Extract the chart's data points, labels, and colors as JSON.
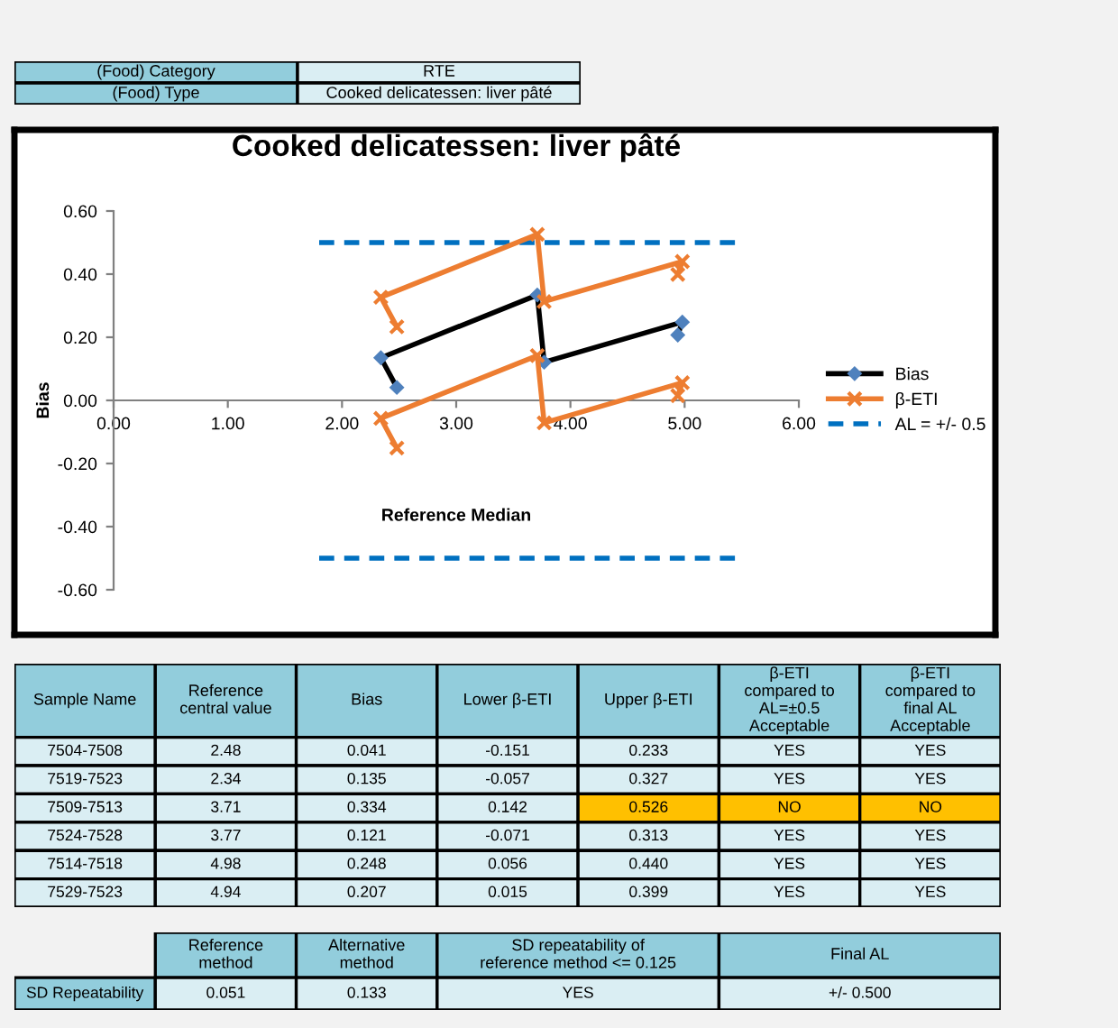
{
  "chart_data": [
    {
      "type": "other",
      "annotations": [
        "(Food) Category",
        "RTE",
        "(Food) Type",
        "Cooked delicatessen: liver pâté"
      ]
    },
    {
      "type": "line",
      "title": "Cooked delicatessen: liver pâté",
      "xlabel": "Reference Median",
      "ylabel": "Bias",
      "x": [
        2.48,
        2.34,
        3.71,
        3.77,
        4.98,
        4.94
      ],
      "series": [
        {
          "name": "Bias",
          "color": "#000000",
          "marker": "diamond",
          "values": [
            0.041,
            0.135,
            0.334,
            0.121,
            0.248,
            0.207
          ]
        },
        {
          "name": "β-ETI",
          "color": "#ed7d31",
          "marker": "cross",
          "values": [
            0.233,
            0.327,
            0.526,
            0.313,
            0.44,
            0.399
          ]
        },
        {
          "color": "#ed7d31",
          "marker": "cross",
          "values": [
            -0.151,
            -0.057,
            0.142,
            -0.071,
            0.056,
            0.015
          ]
        }
      ],
      "ref_lines": [
        {
          "axis": "y",
          "value": 0.5,
          "label": "AL = +/- 0.5",
          "color": "#0070c0",
          "line_style": "dashed"
        },
        {
          "axis": "y",
          "value": -0.5,
          "color": "#0070c0",
          "line_style": "dashed"
        }
      ],
      "xlim": [
        0,
        6
      ],
      "xticks": [
        {
          "value": 0,
          "label": "0.00"
        },
        {
          "value": 1,
          "label": "1.00"
        },
        {
          "value": 2,
          "label": "2.00"
        },
        {
          "value": 3,
          "label": "3.00"
        },
        {
          "value": 4,
          "label": "4.00"
        },
        {
          "value": 5,
          "label": "5.00"
        },
        {
          "value": 6,
          "label": "6.00"
        }
      ],
      "ylim": [
        -0.6,
        0.6
      ],
      "yticks": [
        {
          "value": -0.6,
          "label": "-0.60"
        },
        {
          "value": -0.4,
          "label": "-0.40"
        },
        {
          "value": -0.2,
          "label": "-0.20"
        },
        {
          "value": 0,
          "label": "0.00"
        },
        {
          "value": 0.2,
          "label": "0.20"
        },
        {
          "value": 0.4,
          "label": "0.40"
        },
        {
          "value": 0.6,
          "label": "0.60"
        }
      ],
      "grid": false,
      "legend": "right"
    },
    {
      "type": "other",
      "categories": [
        "Sample Name",
        "Reference central value",
        "Bias",
        "Lower β-ETI",
        "Upper β-ETI",
        "β-ETI compared to AL=±0.5 Acceptable",
        "β-ETI compared to final AL Acceptable"
      ],
      "annotations": [
        "7504-7508",
        "2.48",
        "0.041",
        "-0.151",
        "0.233",
        "YES",
        "YES",
        "7519-7523",
        "2.34",
        "0.135",
        "-0.057",
        "0.327",
        "YES",
        "YES",
        "7509-7513",
        "3.71",
        "0.334",
        "0.142",
        "0.526",
        "NO",
        "NO",
        "7524-7528",
        "3.77",
        "0.121",
        "-0.071",
        "0.313",
        "YES",
        "YES",
        "7514-7518",
        "4.98",
        "0.248",
        "0.056",
        "0.440",
        "YES",
        "YES",
        "7529-7523",
        "4.94",
        "0.207",
        "0.015",
        "0.399",
        "YES",
        "YES"
      ],
      "colors": [
        null,
        null,
        null,
        null,
        null,
        null,
        null,
        null,
        null,
        null,
        null,
        null,
        null,
        null,
        null,
        null,
        null,
        null,
        "#ffc000",
        "#ffc000",
        "#ffc000",
        null,
        null,
        null,
        null,
        null,
        null,
        null,
        null,
        null,
        null,
        null,
        null,
        null,
        null,
        null,
        null,
        null,
        null,
        null,
        null,
        null
      ]
    },
    {
      "type": "other",
      "categories": [
        null,
        "Reference method",
        "Alternative method",
        "SD repeatability of reference method <= 0.125",
        "Final AL"
      ],
      "annotations": [
        "SD Repeatability",
        "0.051",
        "0.133",
        "YES",
        "+/- 0.500"
      ]
    }
  ]
}
